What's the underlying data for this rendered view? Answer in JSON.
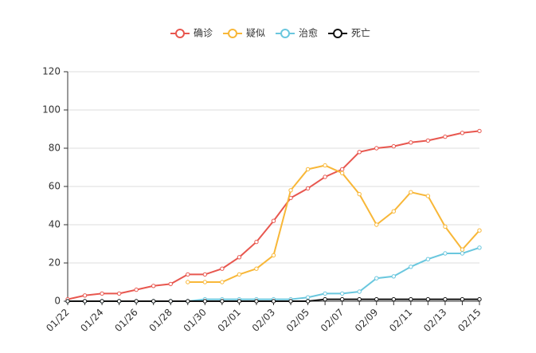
{
  "chart_data": {
    "type": "line",
    "categories": [
      "01/22",
      null,
      "01/24",
      null,
      "01/26",
      null,
      "01/28",
      null,
      "01/30",
      null,
      "02/01",
      null,
      "02/03",
      null,
      "02/05",
      null,
      "02/07",
      null,
      "02/09",
      null,
      "02/11",
      null,
      "02/13",
      null,
      "02/15"
    ],
    "series": [
      {
        "name": "确诊",
        "color": "#e8574f",
        "values": [
          1,
          3,
          4,
          4,
          6,
          8,
          9,
          14,
          14,
          17,
          23,
          31,
          42,
          54,
          59,
          65,
          69,
          78,
          80,
          81,
          83,
          84,
          86,
          88,
          89
        ]
      },
      {
        "name": "疑似",
        "color": "#f8b738",
        "values": [
          null,
          null,
          null,
          null,
          null,
          null,
          null,
          10,
          10,
          10,
          14,
          17,
          24,
          58,
          69,
          71,
          67,
          56,
          40,
          47,
          57,
          55,
          39,
          27,
          37
        ]
      },
      {
        "name": "治愈",
        "color": "#6ac7de",
        "values": [
          0,
          0,
          0,
          0,
          0,
          0,
          0,
          0,
          1,
          1,
          1,
          1,
          1,
          1,
          2,
          4,
          4,
          5,
          12,
          13,
          18,
          22,
          25,
          25,
          28
        ]
      },
      {
        "name": "死亡",
        "color": "#111111",
        "values": [
          0,
          0,
          0,
          0,
          0,
          0,
          0,
          0,
          0,
          0,
          0,
          0,
          0,
          0,
          0,
          1,
          1,
          1,
          1,
          1,
          1,
          1,
          1,
          1,
          1
        ]
      }
    ],
    "ylim": [
      0,
      120
    ],
    "yticks": [
      0,
      20,
      40,
      60,
      80,
      100,
      120
    ],
    "grid": true,
    "legend": "top"
  }
}
